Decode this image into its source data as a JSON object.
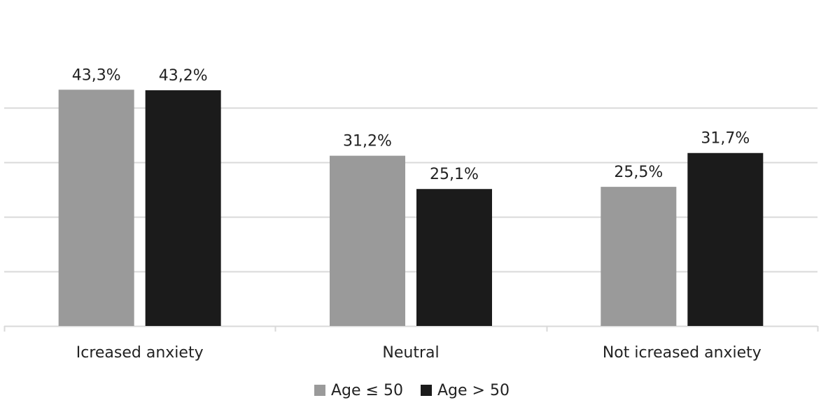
{
  "chart_data": {
    "type": "bar",
    "title": "",
    "xlabel": "",
    "ylabel": "",
    "categories": [
      "Icreased anxiety",
      "Neutral",
      "Not icreased anxiety"
    ],
    "series": [
      {
        "name": "Age ≤ 50",
        "color": "#9a9a9a",
        "values": [
          43.3,
          31.2,
          25.5
        ],
        "labels": [
          "43,3%",
          "31,2%",
          "25,5%"
        ]
      },
      {
        "name": "Age > 50",
        "color": "#1b1b1b",
        "values": [
          43.2,
          25.1,
          31.7
        ],
        "labels": [
          "43,2%",
          "25,1%",
          "31,7%"
        ]
      }
    ],
    "ylim": [
      0,
      50
    ],
    "grid": true,
    "legend": "bottom-center",
    "axis_color": "#d9d9d9",
    "grid_color": "#d9d9d9",
    "text_color": "#222222"
  }
}
